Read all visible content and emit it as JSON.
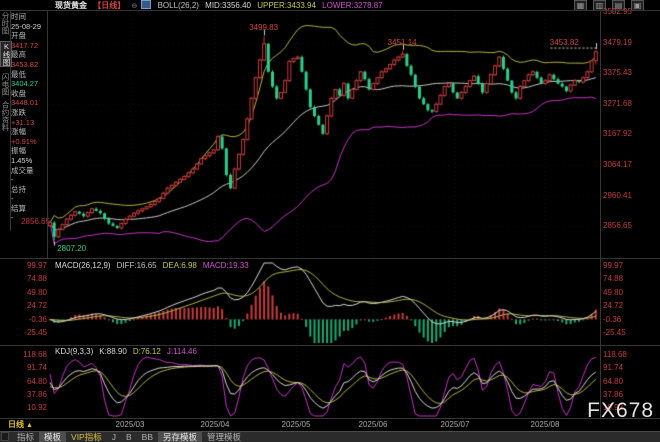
{
  "topbar": {
    "title": "现货黄金",
    "period": "【日线】",
    "boll": "BOLL(26,2)",
    "mid": "MID:3356.40",
    "upper": "UPPER:3433.94",
    "lower": "LOWER:3278.87",
    "icons": [
      {
        "name": "layout-grid-icon",
        "glyph": "▦"
      },
      {
        "name": "layout-columns-icon",
        "glyph": "▥"
      },
      {
        "name": "layout-rows-icon",
        "glyph": "▤"
      },
      {
        "name": "layout-single-icon",
        "glyph": "▣"
      }
    ]
  },
  "sidebar": {
    "tabs": [
      {
        "label": "分时图",
        "active": false
      },
      {
        "label": "K线图",
        "active": true
      },
      {
        "label": "闪电图",
        "active": false
      },
      {
        "label": "合约资料",
        "active": false
      }
    ],
    "fields": [
      {
        "label": "时间",
        "value": "25-08-29",
        "color": "#cfcfcf"
      },
      {
        "label": "开盘",
        "value": "3417.72",
        "color": "#cf4545"
      },
      {
        "label": "最高",
        "value": "3453.82",
        "color": "#cf4545"
      },
      {
        "label": "最低",
        "value": "3404.27",
        "color": "#2fcf8f"
      },
      {
        "label": "收盘",
        "value": "3448.01",
        "color": "#cf4545"
      },
      {
        "label": "涨跌",
        "value": "+31.13",
        "color": "#cf4545"
      },
      {
        "label": "涨幅",
        "value": "+0.91%",
        "color": "#cf4545"
      },
      {
        "label": "振幅",
        "value": "1.45%",
        "color": "#d8d8d8"
      },
      {
        "label": "成交量",
        "value": "-",
        "color": "#cfcfcf"
      },
      {
        "label": "总持",
        "value": "-",
        "color": "#cfcfcf"
      },
      {
        "label": "结算",
        "value": "-",
        "color": "#cfcfcf"
      }
    ]
  },
  "macd": {
    "params": "MACD(26,12,9)",
    "diff": "DIFF:16.65",
    "dea": "DEA:6.98",
    "macd": "MACD:19.33",
    "y_labels": [
      "99.97",
      "74.88",
      "49.80",
      "24.72",
      "-0.36",
      "-25.45"
    ]
  },
  "kdj": {
    "params": "KDJ(9,3,3)",
    "k": "K:88.90",
    "d": "D:76.12",
    "j": "J:114.46",
    "y_labels": [
      "118.68",
      "91.74",
      "64.80",
      "37.86",
      "10.92"
    ]
  },
  "bottom": {
    "period": "日线",
    "arrow": "▲",
    "toolbar": [
      {
        "label": "指标",
        "style": "plain"
      },
      {
        "label": "模板",
        "style": "raised"
      },
      {
        "label": "VIP指标",
        "style": "vip"
      },
      {
        "label": "J",
        "style": "plain"
      },
      {
        "label": "B",
        "style": "plain"
      },
      {
        "label": "BB",
        "style": "plain"
      },
      {
        "label": "另存模板",
        "style": "raised"
      },
      {
        "label": "管理模板",
        "style": "plain"
      }
    ]
  },
  "watermark": "FX678",
  "colors": {
    "up": "#c83c3c",
    "down": "#2ad08c",
    "boll_mid": "#c8c8c8",
    "boll_upper": "#b4b43c",
    "boll_lower": "#c832c8",
    "diff_line": "#d8d8d8",
    "dea_line": "#b4b43c",
    "hist_pos": "#c83c3c",
    "hist_neg": "#1faa74",
    "k_line": "#d8d8d8",
    "d_line": "#b4b43c",
    "j_line": "#c832c8",
    "axis_text": "#c23b3b"
  },
  "chart_data": {
    "type": "candlestick",
    "symbol": "现货黄金",
    "period": "日线",
    "x_labels": [
      "2025/03",
      "2025/04",
      "2025/05",
      "2025/06",
      "2025/07",
      "2025/08"
    ],
    "y_labels_main": [
      "3582.95",
      "3479.19",
      "3375.43",
      "3271.68",
      "3167.92",
      "3064.17",
      "2960.41",
      "2856.65"
    ],
    "y_range_main": [
      2856.65,
      3582.95
    ],
    "left_min_label": "2856.65",
    "boll": {
      "window": 26,
      "k": 2,
      "mid": 3356.4,
      "upper": 3433.94,
      "lower": 3278.87
    },
    "macd_values": {
      "diff": 16.65,
      "dea": 6.98,
      "macd": 19.33,
      "y_range": [
        -25.45,
        99.97
      ]
    },
    "kdj_values": {
      "k": 88.9,
      "d": 76.12,
      "j": 114.46,
      "y_range": [
        10.92,
        118.68
      ]
    },
    "last_candle": {
      "open": 3417.72,
      "high": 3453.82,
      "low": 3404.27,
      "close": 3448.01
    },
    "annotations": [
      {
        "i": 1,
        "price": 2807.2,
        "label": "2807.20",
        "color": "#2fcf8f",
        "side": "below"
      },
      {
        "i": 51,
        "price": 3499.83,
        "label": "3499.83",
        "color": "#cf4545",
        "side": "above"
      },
      {
        "i": 84,
        "price": 3451.14,
        "label": "3451.14",
        "color": "#cf4545",
        "side": "above"
      },
      {
        "i": 130,
        "price": 3453.82,
        "label": "3453.82",
        "color": "#cf4545",
        "side": "above-right"
      }
    ],
    "closes": [
      2868,
      2820,
      2845,
      2862,
      2880,
      2893,
      2905,
      2898,
      2890,
      2902,
      2915,
      2908,
      2900,
      2882,
      2865,
      2857,
      2850,
      2865,
      2880,
      2890,
      2900,
      2908,
      2915,
      2922,
      2930,
      2940,
      2950,
      2968,
      2985,
      2995,
      3005,
      3015,
      3025,
      3037,
      3050,
      3067,
      3085,
      3095,
      3105,
      3115,
      3160,
      3120,
      3030,
      2985,
      3050,
      3100,
      3150,
      3220,
      3290,
      3360,
      3420,
      3475,
      3380,
      3330,
      3290,
      3310,
      3350,
      3415,
      3425,
      3430,
      3380,
      3320,
      3260,
      3230,
      3200,
      3170,
      3230,
      3290,
      3320,
      3300,
      3340,
      3290,
      3320,
      3350,
      3380,
      3355,
      3320,
      3340,
      3360,
      3380,
      3390,
      3405,
      3420,
      3430,
      3440,
      3400,
      3370,
      3330,
      3290,
      3270,
      3250,
      3245,
      3270,
      3300,
      3330,
      3340,
      3310,
      3290,
      3310,
      3330,
      3350,
      3365,
      3340,
      3310,
      3340,
      3370,
      3400,
      3430,
      3390,
      3350,
      3310,
      3290,
      3330,
      3350,
      3370,
      3380,
      3360,
      3340,
      3350,
      3370,
      3355,
      3340,
      3330,
      3315,
      3335,
      3350,
      3345,
      3360,
      3380,
      3417,
      3448.01
    ]
  }
}
